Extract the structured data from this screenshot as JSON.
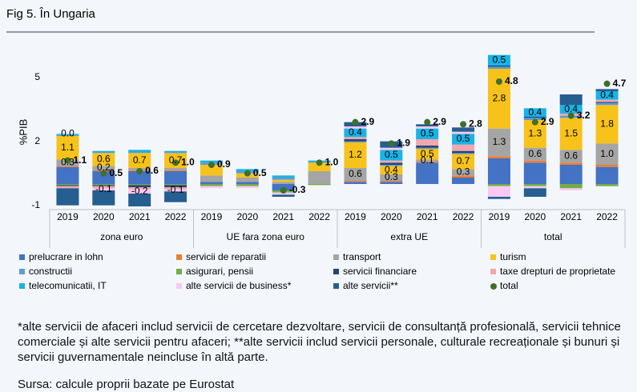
{
  "title": "Fig 5. În Ungaria",
  "note": "*alte servicii de afaceri includ servicii de cercetare dezvoltare, servicii de consultanță profesională, servicii tehnice comerciale și alte servicii pentru afaceri; **alte servicii includ servicii personale, culturale recreaționale și bunuri și servicii guvernamentale neincluse în altă parte.",
  "source": "Sursa: calcule proprii bazate pe Eurostat",
  "chart_data": {
    "type": "stacked_bar",
    "ylabel": "%PIB",
    "categories": [
      "2019",
      "2020",
      "2021",
      "2022",
      "2019",
      "2020",
      "2021",
      "2022",
      "2019",
      "2020",
      "2021",
      "2022",
      "2019",
      "2020",
      "2021",
      "2022"
    ],
    "groups": [
      "zona euro",
      "UE fara zona euro",
      "extra UE",
      "total"
    ],
    "ylim": [
      -1.2,
      6
    ],
    "yticks": [
      -1,
      2,
      5
    ],
    "series": [
      {
        "name": "prelucrare in lohn",
        "color": "#4472c4",
        "values": [
          0.8,
          0.6,
          0.6,
          0.6,
          0.1,
          0.1,
          -0.3,
          0.0,
          0.1,
          0.1,
          1.0,
          0.3,
          1.2,
          1.0,
          0.9,
          0.8
        ]
      },
      {
        "name": "servicii de reparatii",
        "color": "#ed7d31",
        "values": [
          0.05,
          0.05,
          0.05,
          0.05,
          0,
          0,
          0,
          0,
          0.05,
          0.05,
          0.05,
          0.1,
          0.1,
          0.1,
          0.1,
          0.1
        ]
      },
      {
        "name": "transport",
        "color": "#a5a5a5",
        "values": [
          0.3,
          0.2,
          0.1,
          0.1,
          0.3,
          0.2,
          0.1,
          0.6,
          0.6,
          0.3,
          0.1,
          0.3,
          1.3,
          0.6,
          0.6,
          1.0
        ],
        "value_labels": [
          "0.3",
          "0.2",
          null,
          null,
          null,
          null,
          null,
          null,
          "0.6",
          "0.3",
          "0.1",
          "0.3",
          "1.3",
          "0.6",
          "0.6",
          "1.0"
        ]
      },
      {
        "name": "turism",
        "color": "#f7c31a",
        "values": [
          1.1,
          0.6,
          0.7,
          0.7,
          0.5,
          0.2,
          0.1,
          0.4,
          1.2,
          0.4,
          0.5,
          0.7,
          2.8,
          1.3,
          1.5,
          1.8
        ],
        "value_labels": [
          "1.1",
          "0.6",
          "0.7",
          "0.7",
          null,
          null,
          null,
          null,
          "1.2",
          "0.4",
          "0.5",
          "0.7",
          "2.8",
          "1.3",
          "1.5",
          "1.8"
        ]
      },
      {
        "name": "constructii",
        "color": "#5b9bd5",
        "values": [
          0.05,
          0.05,
          0.05,
          0.05,
          0.1,
          0.1,
          0.1,
          0.05,
          0.05,
          0.05,
          0.05,
          0.05,
          0.1,
          0.1,
          0.1,
          0.1
        ]
      },
      {
        "name": "asigurari, pensii",
        "color": "#70ad47",
        "values": [
          -0.05,
          -0.05,
          -0.05,
          -0.05,
          -0.1,
          -0.1,
          -0.1,
          -0.05,
          0,
          0,
          0,
          0,
          -0.1,
          -0.1,
          -0.2,
          -0.1
        ]
      },
      {
        "name": "servicii financiare",
        "color": "#264478",
        "values": [
          -0.05,
          -0.05,
          -0.1,
          -0.1,
          0,
          0,
          0,
          0,
          0.1,
          0.1,
          0.1,
          0.1,
          0.05,
          0.05,
          0,
          0.05
        ]
      },
      {
        "name": "taxe drepturi de proprietate",
        "color": "#f4a6ae",
        "values": [
          -0.1,
          -0.1,
          -0.1,
          -0.1,
          0,
          0,
          0,
          0,
          0.1,
          0.1,
          0.3,
          0.3,
          0,
          0,
          0.1,
          0.1
        ]
      },
      {
        "name": "telecomunicatii, IT",
        "color": "#19b3e6",
        "values": [
          0.05,
          0.05,
          0.1,
          0.05,
          0.1,
          0.1,
          0.1,
          0.05,
          0.4,
          0.5,
          0.5,
          0.5,
          0.5,
          0.4,
          0.4,
          0.4
        ],
        "value_labels": [
          null,
          null,
          null,
          null,
          null,
          null,
          null,
          null,
          "0.4",
          "0.5",
          "0.5",
          "0.5",
          "0.5",
          "0.4",
          "0.4",
          "0.4"
        ]
      },
      {
        "name": "alte servicii de business*",
        "color": "#f9c9f2",
        "values": [
          0.0,
          -0.1,
          -0.2,
          -0.1,
          -0.1,
          -0.1,
          -0.1,
          0,
          0.1,
          0.1,
          0.1,
          0.1,
          -0.5,
          -0.1,
          -0.1,
          0
        ],
        "value_labels": [
          "0.0",
          "-0.1",
          "-0.2",
          "-0.1",
          null,
          null,
          null,
          null,
          null,
          null,
          null,
          null,
          null,
          null,
          null,
          null
        ]
      },
      {
        "name": "alte servicii**",
        "color": "#255e91",
        "values": [
          -0.8,
          -0.7,
          -0.6,
          -0.5,
          0,
          0,
          -0.1,
          0,
          0.2,
          0.3,
          0.1,
          0.2,
          -0.1,
          -0.4,
          0.5,
          0.1
        ]
      },
      {
        "name": "total",
        "color": "#3f6f2a",
        "kind": "dot",
        "values": [
          1.1,
          0.5,
          0.6,
          1.0,
          0.9,
          0.5,
          -0.3,
          1.0,
          2.9,
          1.9,
          2.9,
          2.8,
          4.8,
          2.9,
          3.2,
          4.7
        ],
        "value_labels": [
          "1.1",
          "0.5",
          "0.6",
          "1.0",
          "0.9",
          "0.5",
          "-0.3",
          "1.0",
          "2.9",
          "1.9",
          "2.9",
          "2.8",
          "4.8",
          "2.9",
          "3.2",
          "4.7"
        ]
      }
    ]
  }
}
